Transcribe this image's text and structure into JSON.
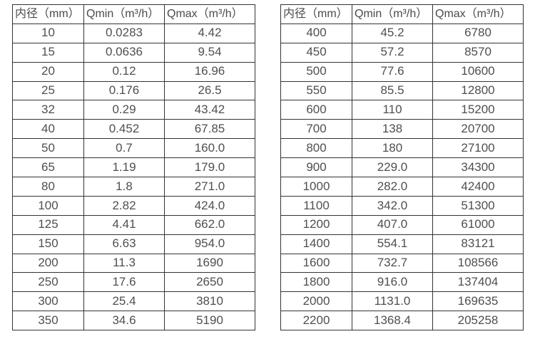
{
  "columns": {
    "diameter": "内径（mm）",
    "qmin": "Qmin（m³/h）",
    "qmax": "Qmax（m³/h）"
  },
  "tables": [
    {
      "name": "flow-spec-small-diameters",
      "headers": [
        "内径（mm）",
        "Qmin（m³/h）",
        "Qmax（m³/h）"
      ],
      "rows": [
        [
          "10",
          "0.0283",
          "4.42"
        ],
        [
          "15",
          "0.0636",
          "9.54"
        ],
        [
          "20",
          "0.12",
          "16.96"
        ],
        [
          "25",
          "0.176",
          "26.5"
        ],
        [
          "32",
          "0.29",
          "43.42"
        ],
        [
          "40",
          "0.452",
          "67.85"
        ],
        [
          "50",
          "0.7",
          "160.0"
        ],
        [
          "65",
          "1.19",
          "179.0"
        ],
        [
          "80",
          "1.8",
          "271.0"
        ],
        [
          "100",
          "2.82",
          "424.0"
        ],
        [
          "125",
          "4.41",
          "662.0"
        ],
        [
          "150",
          "6.63",
          "954.0"
        ],
        [
          "200",
          "11.3",
          "1690"
        ],
        [
          "250",
          "17.6",
          "2650"
        ],
        [
          "300",
          "25.4",
          "3810"
        ],
        [
          "350",
          "34.6",
          "5190"
        ]
      ]
    },
    {
      "name": "flow-spec-large-diameters",
      "headers": [
        "内径（mm）",
        "Qmin（m³/h）",
        "Qmax（m³/h）"
      ],
      "rows": [
        [
          "400",
          "45.2",
          "6780"
        ],
        [
          "450",
          "57.2",
          "8570"
        ],
        [
          "500",
          "77.6",
          "10600"
        ],
        [
          "550",
          "85.5",
          "12800"
        ],
        [
          "600",
          "110",
          "15200"
        ],
        [
          "700",
          "138",
          "20700"
        ],
        [
          "800",
          "180",
          "27100"
        ],
        [
          "900",
          "229.0",
          "34300"
        ],
        [
          "1000",
          "282.0",
          "42400"
        ],
        [
          "1100",
          "342.0",
          "51300"
        ],
        [
          "1200",
          "407.0",
          "61000"
        ],
        [
          "1400",
          "554.1",
          "83121"
        ],
        [
          "1600",
          "732.7",
          "108566"
        ],
        [
          "1800",
          "916.0",
          "137404"
        ],
        [
          "2000",
          "1131.0",
          "169635"
        ],
        [
          "2200",
          "1368.4",
          "205258"
        ]
      ]
    }
  ],
  "colors": {
    "border": "#333333",
    "header_text": "#4a4a4a",
    "cell_text": "#4f4f4f",
    "background": "#ffffff"
  }
}
